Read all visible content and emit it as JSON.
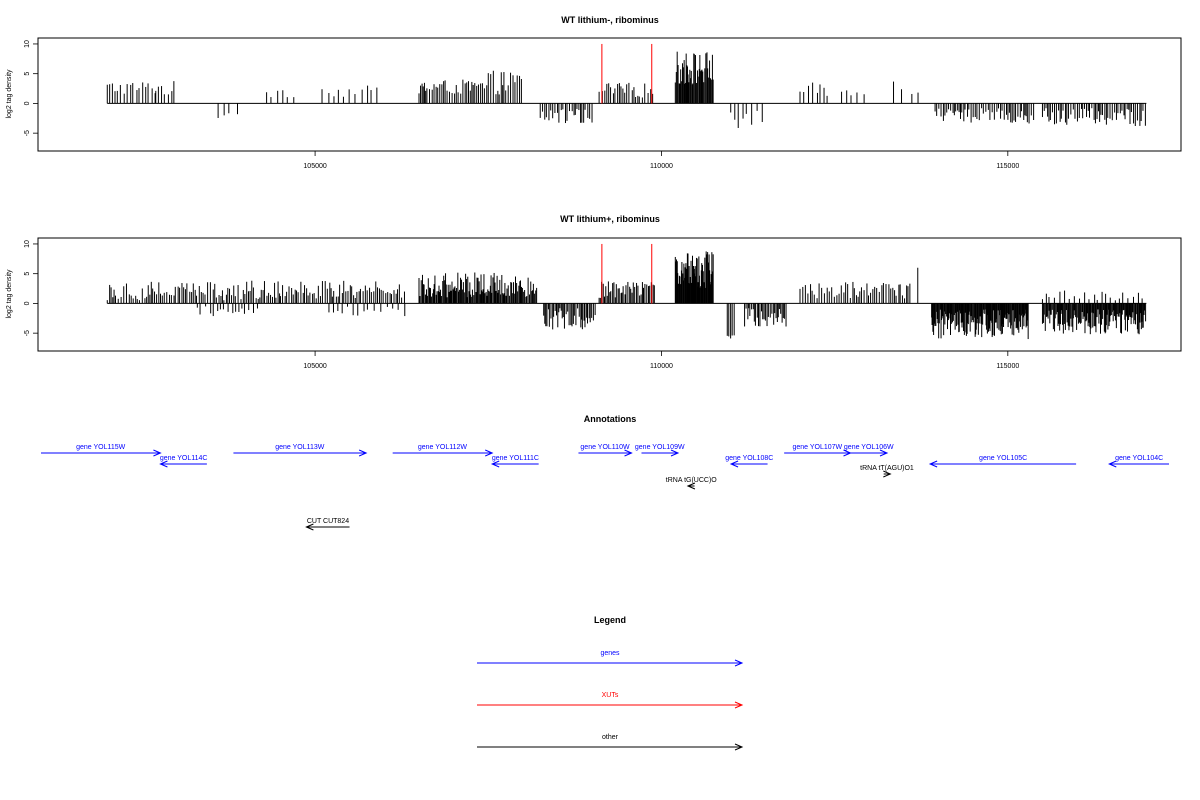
{
  "chart_data": [
    {
      "type": "bar",
      "title": "WT lithium-, ribominus",
      "ylabel": "log2 tag density",
      "xlabel": "",
      "xlim": [
        101000,
        117500
      ],
      "ylim": [
        -8,
        11
      ],
      "x_ticks": [
        105000,
        110000,
        115000
      ],
      "y_ticks": [
        -5,
        0,
        5,
        10
      ],
      "series": [
        {
          "color": "#000000",
          "regions": [
            {
              "from": 102000,
              "to": 102700,
              "sign": 1,
              "min": 1.5,
              "max": 3.8,
              "step": 45
            },
            {
              "from": 102700,
              "to": 103000,
              "sign": 1,
              "min": 1.2,
              "max": 3.8,
              "step": 45
            },
            {
              "from": 103600,
              "to": 103900,
              "sign": -1,
              "min": 1.5,
              "max": 2.6,
              "step": 90
            },
            {
              "from": 104300,
              "to": 104800,
              "sign": 1,
              "min": 1.0,
              "max": 3.0,
              "step": 90
            },
            {
              "from": 105100,
              "to": 105900,
              "sign": 1,
              "min": 1.0,
              "max": 3.0,
              "step": 75
            },
            {
              "from": 106500,
              "to": 107500,
              "sign": 1,
              "min": 1.5,
              "max": 4.0,
              "step": 28
            },
            {
              "from": 107500,
              "to": 108000,
              "sign": 1,
              "min": 1.5,
              "max": 5.5,
              "step": 28
            },
            {
              "from": 108250,
              "to": 109000,
              "sign": -1,
              "min": 0.8,
              "max": 3.4,
              "step": 30
            },
            {
              "from": 109100,
              "to": 109900,
              "sign": 1,
              "min": 1.0,
              "max": 3.5,
              "step": 35
            },
            {
              "from": 110200,
              "to": 110750,
              "sign": 1,
              "min": 3.0,
              "max": 8.8,
              "step": 12
            },
            {
              "from": 111000,
              "to": 111500,
              "sign": -1,
              "min": 1.0,
              "max": 4.2,
              "step": 60
            },
            {
              "from": 112000,
              "to": 112400,
              "sign": 1,
              "min": 1.0,
              "max": 3.5,
              "step": 50
            },
            {
              "from": 112600,
              "to": 113000,
              "sign": 1,
              "min": 1.0,
              "max": 2.5,
              "step": 80
            },
            {
              "from": 113350,
              "to": 113750,
              "sign": 1,
              "min": 1.5,
              "max": 5.5,
              "step": 120
            },
            {
              "from": 113950,
              "to": 115400,
              "sign": -1,
              "min": 0.8,
              "max": 3.4,
              "step": 26
            },
            {
              "from": 115500,
              "to": 117000,
              "sign": -1,
              "min": 0.8,
              "max": 3.8,
              "step": 26
            }
          ]
        },
        {
          "color": "#ff0000",
          "bars": [
            {
              "x": 109140,
              "y": 10
            },
            {
              "x": 109860,
              "y": 10
            }
          ]
        }
      ]
    },
    {
      "type": "bar",
      "title": "WT lithium+, ribominus",
      "ylabel": "log2 tag density",
      "xlabel": "",
      "xlim": [
        101000,
        117500
      ],
      "ylim": [
        -8,
        11
      ],
      "x_ticks": [
        105000,
        110000,
        115000
      ],
      "y_ticks": [
        -5,
        0,
        5,
        10
      ],
      "series": [
        {
          "color": "#000000",
          "regions": [
            {
              "from": 102000,
              "to": 104500,
              "sign": 1,
              "min": 0.5,
              "max": 3.9,
              "step": 30
            },
            {
              "from": 103300,
              "to": 104200,
              "sign": -1,
              "min": 0.5,
              "max": 2.5,
              "step": 60
            },
            {
              "from": 104500,
              "to": 106300,
              "sign": 1,
              "min": 0.8,
              "max": 3.8,
              "step": 30
            },
            {
              "from": 105200,
              "to": 106300,
              "sign": -1,
              "min": 0.5,
              "max": 2.5,
              "step": 70
            },
            {
              "from": 106500,
              "to": 108200,
              "sign": 1,
              "min": 1.0,
              "max": 5.2,
              "step": 14
            },
            {
              "from": 108300,
              "to": 109050,
              "sign": -1,
              "min": 0.8,
              "max": 4.6,
              "step": 18
            },
            {
              "from": 109100,
              "to": 109900,
              "sign": 1,
              "min": 0.8,
              "max": 3.8,
              "step": 20
            },
            {
              "from": 110200,
              "to": 110750,
              "sign": 1,
              "min": 2.5,
              "max": 8.8,
              "step": 9
            },
            {
              "from": 110950,
              "to": 111050,
              "sign": -1,
              "min": 3.0,
              "max": 7.2,
              "step": 30
            },
            {
              "from": 111200,
              "to": 111800,
              "sign": -1,
              "min": 0.8,
              "max": 4.0,
              "step": 20
            },
            {
              "from": 112000,
              "to": 113600,
              "sign": 1,
              "min": 0.8,
              "max": 3.8,
              "step": 30
            },
            {
              "from": 113700,
              "to": 113760,
              "sign": 1,
              "min": 6.0,
              "max": 6.0,
              "step": 100
            },
            {
              "from": 113900,
              "to": 115300,
              "sign": -1,
              "min": 1.0,
              "max": 6.0,
              "step": 10
            },
            {
              "from": 115500,
              "to": 117000,
              "sign": -1,
              "min": 1.0,
              "max": 5.2,
              "step": 12
            },
            {
              "from": 115500,
              "to": 117000,
              "sign": 1,
              "min": 0.5,
              "max": 2.5,
              "step": 60
            }
          ]
        },
        {
          "color": "#ff0000",
          "bars": [
            {
              "x": 109140,
              "y": 10
            },
            {
              "x": 109860,
              "y": 10
            }
          ]
        }
      ]
    }
  ],
  "annotations": {
    "title": "Annotations",
    "features": [
      {
        "label": "gene YOL115W",
        "color": "#0000ff",
        "from": 101000,
        "to": 102800
      },
      {
        "label": "gene YOL114C",
        "color": "#0000ff",
        "from": 103500,
        "to": 102800
      },
      {
        "label": "gene YOL113W",
        "color": "#0000ff",
        "from": 103900,
        "to": 105900
      },
      {
        "label": "gene YOL112W",
        "color": "#0000ff",
        "from": 106300,
        "to": 107800
      },
      {
        "label": "gene YOL111C",
        "color": "#0000ff",
        "from": 108500,
        "to": 107800
      },
      {
        "label": "gene YOL110W",
        "color": "#0000ff",
        "from": 109100,
        "to": 109900
      },
      {
        "label": "gene YOL109W",
        "color": "#0000ff",
        "from": 110050,
        "to": 110600
      },
      {
        "label": "tRNA tG(UCC)O",
        "color": "#000000",
        "from": 110850,
        "to": 110750
      },
      {
        "label": "gene YOL108C",
        "color": "#0000ff",
        "from": 111950,
        "to": 111400
      },
      {
        "label": "gene YOL107W",
        "color": "#0000ff",
        "from": 112200,
        "to": 113200
      },
      {
        "label": "gene YOL106W",
        "color": "#0000ff",
        "from": 113200,
        "to": 113750
      },
      {
        "label": "tRNA tT(AGU)O1",
        "color": "#000000",
        "from": 113700,
        "to": 113800
      },
      {
        "label": "gene YOL105C",
        "color": "#0000ff",
        "from": 116600,
        "to": 114400
      },
      {
        "label": "gene YOL104C",
        "color": "#0000ff",
        "from": 118000,
        "to": 117100
      },
      {
        "label": "CUT CUT824",
        "color": "#000000",
        "from": 105650,
        "to": 105000
      }
    ]
  },
  "legend": {
    "title": "Legend",
    "items": [
      {
        "label": "genes",
        "color": "#0000ff"
      },
      {
        "label": "XUTs",
        "color": "#ff0000"
      },
      {
        "label": "other",
        "color": "#000000"
      }
    ]
  }
}
